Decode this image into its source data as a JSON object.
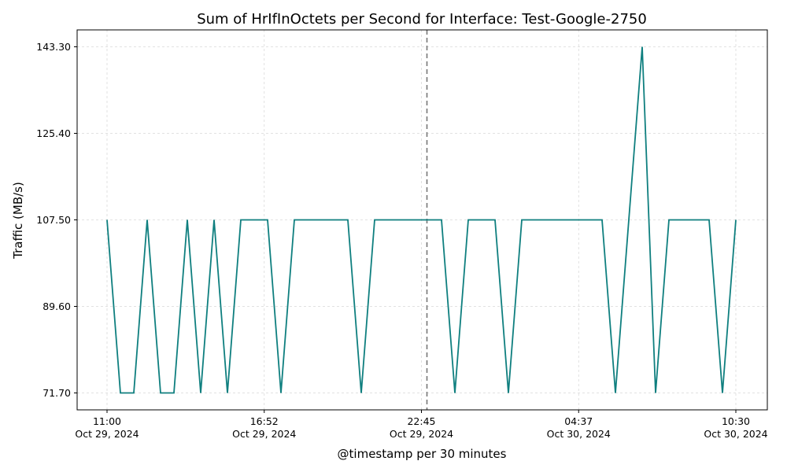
{
  "chart_data": {
    "type": "line",
    "title": "Sum of HrIfInOctets per Second for Interface: Test-Google-2750",
    "xlabel": "@timestamp per 30 minutes",
    "ylabel": "Traffic (MB/s)",
    "grid": true,
    "x_tick_labels": [
      [
        "11:00",
        "Oct 29, 2024"
      ],
      [
        "16:52",
        "Oct 29, 2024"
      ],
      [
        "22:45",
        "Oct 29, 2024"
      ],
      [
        "04:37",
        "Oct 30, 2024"
      ],
      [
        "10:30",
        "Oct 30, 2024"
      ]
    ],
    "y_ticks": [
      "71.70",
      "89.60",
      "107.50",
      "125.40",
      "143.30"
    ],
    "ylim": [
      68.2,
      146.8
    ],
    "reference_line": {
      "label": "22:45 Oct 29, 2024",
      "style": "dashed",
      "color": "#777777"
    },
    "series": [
      {
        "color": "#0f7f7f",
        "values": [
          107.5,
          71.7,
          71.7,
          107.5,
          71.7,
          71.7,
          107.5,
          71.7,
          107.5,
          71.7,
          107.5,
          107.5,
          107.5,
          71.7,
          107.5,
          107.5,
          107.5,
          107.5,
          107.5,
          71.7,
          107.5,
          107.5,
          107.5,
          107.5,
          107.5,
          107.5,
          71.7,
          107.5,
          107.5,
          107.5,
          71.7,
          107.5,
          107.5,
          107.5,
          107.5,
          107.5,
          107.5,
          107.5,
          71.7,
          107.5,
          143.3,
          71.7,
          107.5,
          107.5,
          107.5,
          107.5,
          71.7,
          107.5
        ]
      }
    ]
  }
}
